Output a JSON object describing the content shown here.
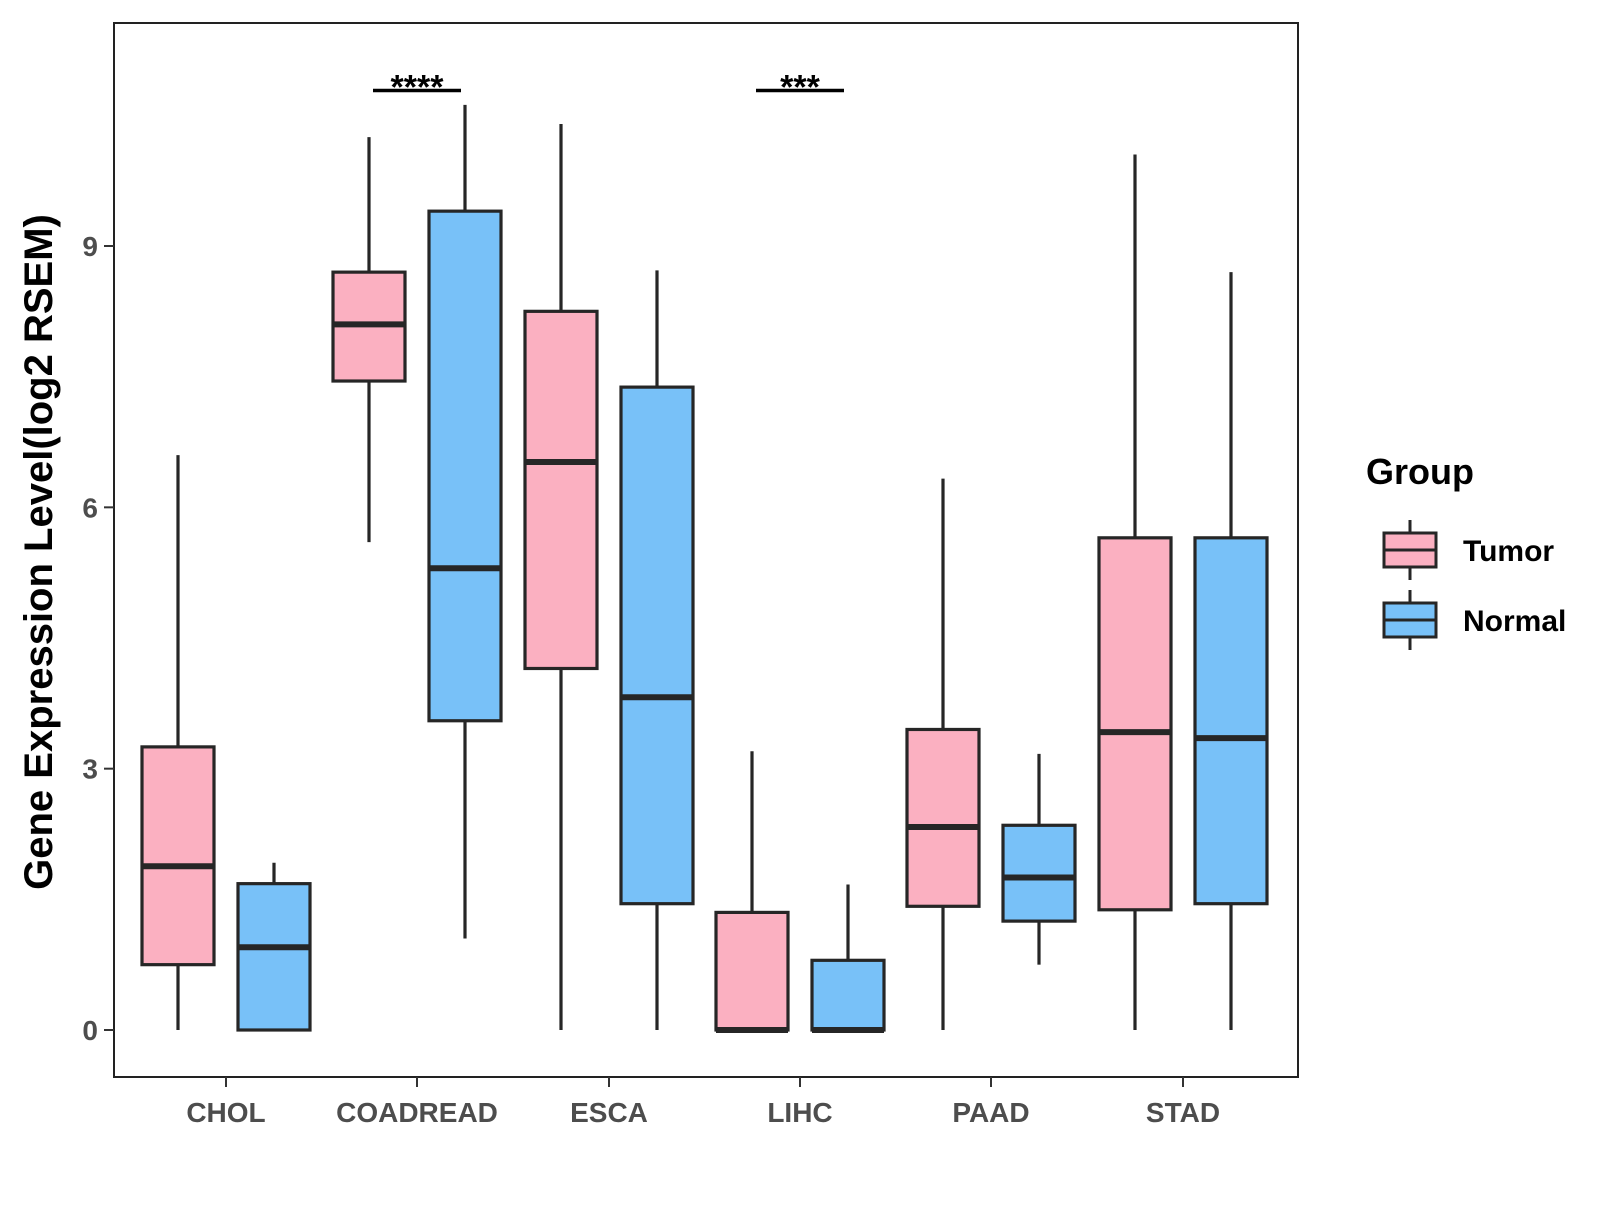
{
  "chart_data": {
    "type": "boxplot",
    "title": "",
    "xlabel": "",
    "ylabel": "Gene Expression Level(log2 RSEM)",
    "ylim": [
      -0.55,
      11.5
    ],
    "yticks": [
      0,
      3,
      6,
      9
    ],
    "ytick_labels": [
      "0",
      "3",
      "6",
      "9"
    ],
    "categories": [
      "CHOL",
      "COADREAD",
      "ESCA",
      "LIHC",
      "PAAD",
      "STAD"
    ],
    "grid": false,
    "legend": {
      "title": "Group",
      "position": "right",
      "entries": [
        {
          "name": "Tumor",
          "color": "#FBB0C1"
        },
        {
          "name": "Normal",
          "color": "#78C1F8"
        }
      ]
    },
    "series": [
      {
        "name": "Tumor",
        "color": "#FBB0C1",
        "boxes": [
          {
            "category": "CHOL",
            "whisker_low": 0.0,
            "q1": 0.75,
            "median": 1.88,
            "q3": 3.25,
            "whisker_high": 6.6
          },
          {
            "category": "COADREAD",
            "whisker_low": 5.6,
            "q1": 7.45,
            "median": 8.1,
            "q3": 8.7,
            "whisker_high": 10.25
          },
          {
            "category": "ESCA",
            "whisker_low": 0.0,
            "q1": 4.15,
            "median": 6.52,
            "q3": 8.25,
            "whisker_high": 10.4
          },
          {
            "category": "LIHC",
            "whisker_low": 0.0,
            "q1": 0.0,
            "median": 0.0,
            "q3": 1.35,
            "whisker_high": 3.2
          },
          {
            "category": "PAAD",
            "whisker_low": 0.0,
            "q1": 1.42,
            "median": 2.33,
            "q3": 3.45,
            "whisker_high": 6.33
          },
          {
            "category": "STAD",
            "whisker_low": 0.0,
            "q1": 1.38,
            "median": 3.42,
            "q3": 5.65,
            "whisker_high": 10.05
          }
        ]
      },
      {
        "name": "Normal",
        "color": "#78C1F8",
        "boxes": [
          {
            "category": "CHOL",
            "whisker_low": 0.0,
            "q1": 0.0,
            "median": 0.95,
            "q3": 1.68,
            "whisker_high": 1.92
          },
          {
            "category": "COADREAD",
            "whisker_low": 1.05,
            "q1": 3.55,
            "median": 5.3,
            "q3": 9.4,
            "whisker_high": 10.62
          },
          {
            "category": "ESCA",
            "whisker_low": 0.0,
            "q1": 1.45,
            "median": 3.82,
            "q3": 7.38,
            "whisker_high": 8.72
          },
          {
            "category": "LIHC",
            "whisker_low": 0.0,
            "q1": 0.0,
            "median": 0.0,
            "q3": 0.8,
            "whisker_high": 1.67
          },
          {
            "category": "PAAD",
            "whisker_low": 0.75,
            "q1": 1.25,
            "median": 1.75,
            "q3": 2.35,
            "whisker_high": 3.17
          },
          {
            "category": "STAD",
            "whisker_low": 0.0,
            "q1": 1.45,
            "median": 3.35,
            "q3": 5.65,
            "whisker_high": 8.7
          }
        ]
      }
    ],
    "annotations": [
      {
        "category": "COADREAD",
        "label": "****",
        "y": 10.9
      },
      {
        "category": "LIHC",
        "label": "***",
        "y": 10.9
      }
    ]
  }
}
